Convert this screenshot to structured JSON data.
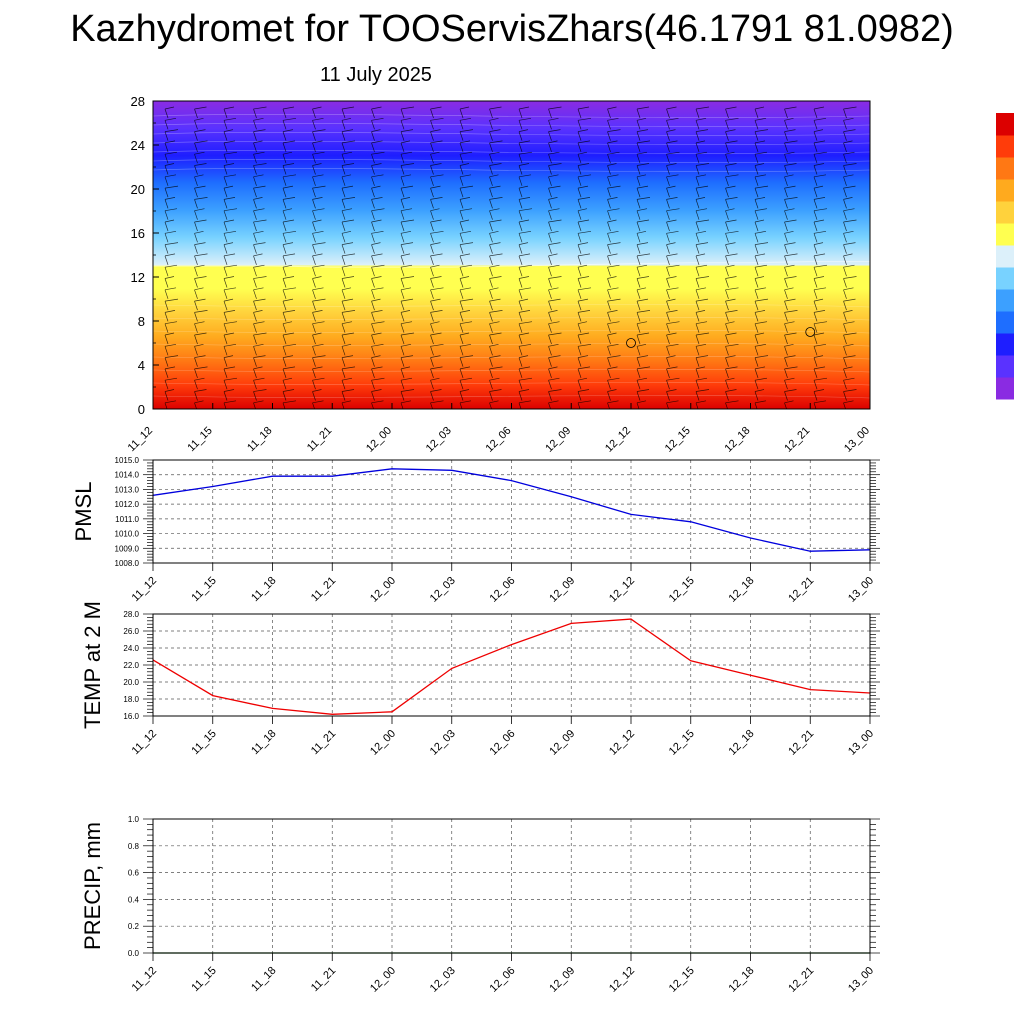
{
  "header": {
    "title": "Kazhydromet for TOOServisZhars(46.1791 81.0982)",
    "date": "11 July 2025"
  },
  "chart_data": [
    {
      "type": "heatmap",
      "title": "",
      "ylim": [
        0,
        28
      ],
      "yticks": [
        "0",
        "4",
        "8",
        "12",
        "16",
        "20",
        "24",
        "28"
      ],
      "categories": [
        "11_12",
        "11_15",
        "11_18",
        "11_21",
        "12_00",
        "12_03",
        "12_06",
        "12_09",
        "12_12",
        "12_15",
        "12_18",
        "12_21",
        "13_00"
      ],
      "colors_low_to_high": [
        "#8a2be2",
        "#5a32ff",
        "#1e1eff",
        "#1e6eff",
        "#3ca0ff",
        "#78d2ff",
        "#dcf0fa",
        "#ffff50",
        "#ffd23c",
        "#ffaa1e",
        "#ff7814",
        "#ff3c0a",
        "#dc0000"
      ],
      "boundary_level": [
        13.0,
        13.0,
        13.0,
        12.9,
        12.9,
        12.9,
        13.0,
        13.1,
        13.2,
        13.3,
        13.3,
        13.4,
        13.4
      ],
      "circles": [
        {
          "x": "12_12",
          "y": 6
        },
        {
          "x": "12_21",
          "y": 7
        }
      ]
    },
    {
      "type": "line",
      "ylabel": "PMSL",
      "ylim": [
        1008.0,
        1015.0
      ],
      "yticks": [
        "1008.0",
        "1009.0",
        "1010.0",
        "1011.0",
        "1012.0",
        "1013.0",
        "1014.0",
        "1015.0"
      ],
      "categories": [
        "11_12",
        "11_15",
        "11_18",
        "11_21",
        "12_00",
        "12_03",
        "12_06",
        "12_09",
        "12_12",
        "12_15",
        "12_18",
        "12_21",
        "13_00"
      ],
      "values": [
        1012.6,
        1013.2,
        1013.9,
        1013.9,
        1014.4,
        1014.3,
        1013.6,
        1012.5,
        1011.3,
        1010.8,
        1009.7,
        1008.8,
        1008.9
      ],
      "color": "#0000dd",
      "grid": true
    },
    {
      "type": "line",
      "ylabel": "TEMP at 2 M",
      "ylim": [
        16.0,
        28.0
      ],
      "yticks": [
        "16.0",
        "18.0",
        "20.0",
        "22.0",
        "24.0",
        "26.0",
        "28.0"
      ],
      "categories": [
        "11_12",
        "11_15",
        "11_18",
        "11_21",
        "12_00",
        "12_03",
        "12_06",
        "12_09",
        "12_12",
        "12_15",
        "12_18",
        "12_21",
        "13_00"
      ],
      "values": [
        22.6,
        18.4,
        16.9,
        16.2,
        16.5,
        21.6,
        24.4,
        26.9,
        27.4,
        22.5,
        20.8,
        19.1,
        18.7
      ],
      "color": "#ee0000",
      "grid": true
    },
    {
      "type": "line",
      "ylabel": "PRECIP, mm",
      "ylim": [
        0.0,
        1.0
      ],
      "yticks": [
        "0.0",
        "0.2",
        "0.4",
        "0.6",
        "0.8",
        "1.0"
      ],
      "categories": [
        "11_12",
        "11_15",
        "11_18",
        "11_21",
        "12_00",
        "12_03",
        "12_06",
        "12_09",
        "12_12",
        "12_15",
        "12_18",
        "12_21",
        "13_00"
      ],
      "values": [
        0,
        0,
        0,
        0,
        0,
        0,
        0,
        0,
        0,
        0,
        0,
        0,
        0
      ],
      "color": "#006400",
      "grid": true
    }
  ]
}
